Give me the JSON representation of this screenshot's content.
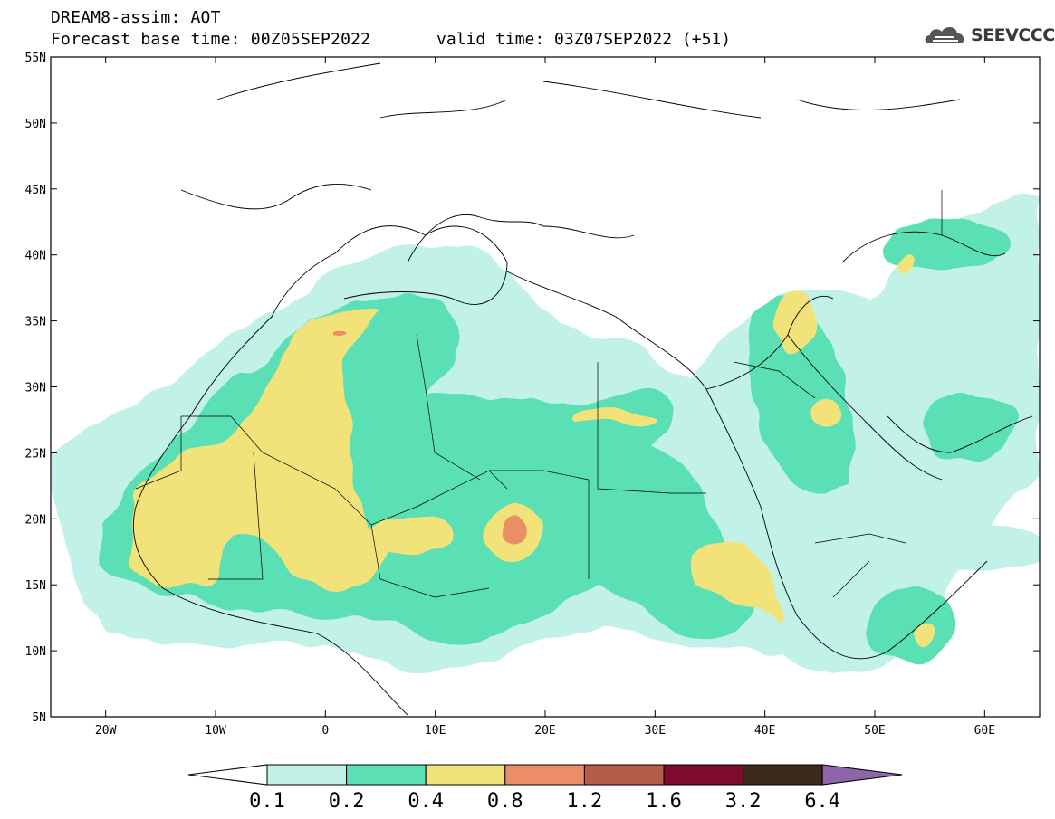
{
  "title": {
    "line1": "DREAM8-assim: AOT",
    "line2": "Forecast base time: 00Z05SEP2022",
    "valid": "valid time: 03Z07SEP2022 (+51)"
  },
  "logo": {
    "text": "SEEVCCC",
    "icon": "cloud-icon"
  },
  "map": {
    "lon_range": [
      -25,
      65
    ],
    "lat_range": [
      5,
      55
    ],
    "lon_ticks": [
      {
        "value": -20,
        "label": "20W"
      },
      {
        "value": -10,
        "label": "10W"
      },
      {
        "value": 0,
        "label": "0"
      },
      {
        "value": 10,
        "label": "10E"
      },
      {
        "value": 20,
        "label": "20E"
      },
      {
        "value": 30,
        "label": "30E"
      },
      {
        "value": 40,
        "label": "40E"
      },
      {
        "value": 50,
        "label": "50E"
      },
      {
        "value": 60,
        "label": "60E"
      }
    ],
    "lat_ticks": [
      {
        "value": 5,
        "label": "5N"
      },
      {
        "value": 10,
        "label": "10N"
      },
      {
        "value": 15,
        "label": "15N"
      },
      {
        "value": 20,
        "label": "20N"
      },
      {
        "value": 25,
        "label": "25N"
      },
      {
        "value": 30,
        "label": "30N"
      },
      {
        "value": 35,
        "label": "35N"
      },
      {
        "value": 40,
        "label": "40N"
      },
      {
        "value": 45,
        "label": "45N"
      },
      {
        "value": 50,
        "label": "50N"
      },
      {
        "value": 55,
        "label": "55N"
      }
    ]
  },
  "colorbar": {
    "labels": [
      "0.1",
      "0.2",
      "0.4",
      "0.8",
      "1.2",
      "1.6",
      "3.2",
      "6.4"
    ],
    "colors": [
      "#ffffff",
      "#c2f1e7",
      "#5ae0b4",
      "#f1e37a",
      "#e98e66",
      "#b55d4a",
      "#7e0a2e",
      "#3c2a1c",
      "#8d65a8"
    ]
  },
  "chart_data": {
    "type": "heatmap",
    "title": "DREAM8-assim: AOT",
    "levels": [
      0.1,
      0.2,
      0.4,
      0.8,
      1.2,
      1.6,
      3.2,
      6.4
    ],
    "regions": [
      {
        "lon": -7,
        "lat": 22,
        "level": 0.4
      },
      {
        "lon": 17,
        "lat": 19.5,
        "level": 0.8
      },
      {
        "lon": 2,
        "lat": 34,
        "level": 0.8
      },
      {
        "lon": 35,
        "lat": 16,
        "level": 0.4
      },
      {
        "lon": 43,
        "lat": 33,
        "level": 0.4
      },
      {
        "lon": 45,
        "lat": 27,
        "level": 0.4
      },
      {
        "lon": 53,
        "lat": 39.5,
        "level": 0.4
      },
      {
        "lon": 27,
        "lat": 26.5,
        "level": 0.4
      },
      {
        "lon": 55,
        "lat": 11,
        "level": 0.4
      }
    ]
  }
}
